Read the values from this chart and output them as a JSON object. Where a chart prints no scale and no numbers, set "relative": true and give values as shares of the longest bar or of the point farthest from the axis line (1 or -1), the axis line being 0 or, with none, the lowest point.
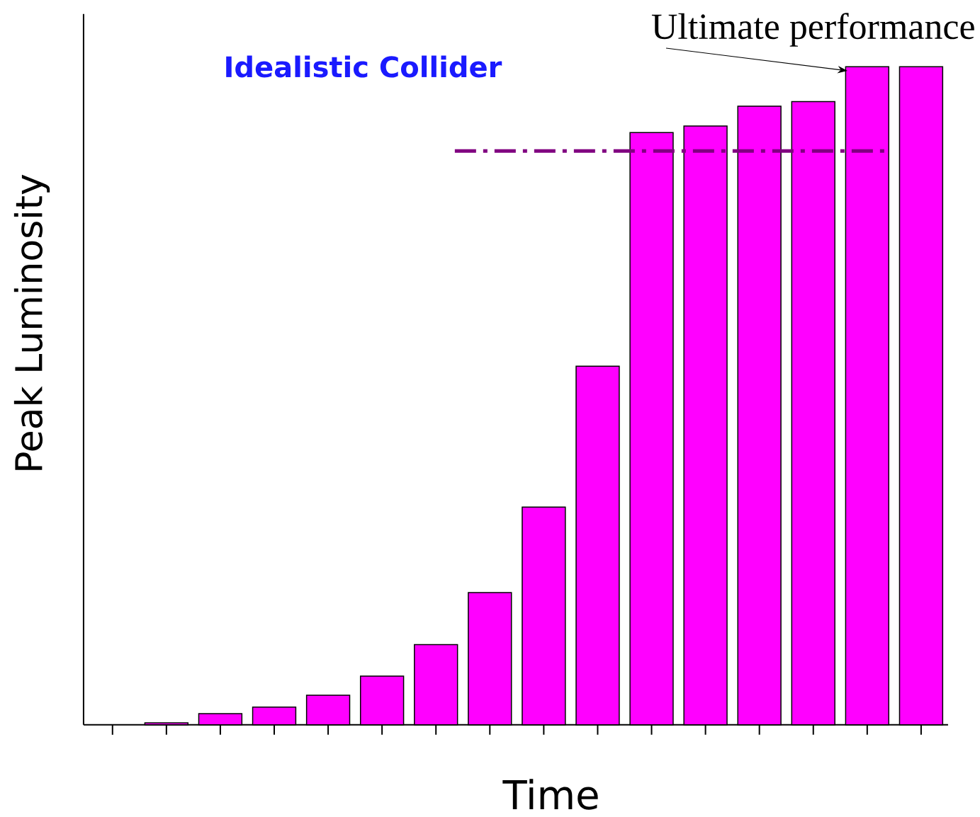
{
  "chart_data": {
    "type": "bar",
    "title": "Idealistic Collider",
    "xlabel": "Time",
    "ylabel": "Peak Luminosity",
    "relative": true,
    "categories": [
      null,
      null,
      null,
      null,
      null,
      null,
      null,
      null,
      null,
      null,
      null,
      null,
      null,
      null,
      null
    ],
    "values": [
      0.003,
      0.017,
      0.027,
      0.045,
      0.074,
      0.122,
      0.201,
      0.331,
      0.545,
      0.9,
      0.91,
      0.94,
      0.947,
      1,
      1
    ],
    "color": "#ff00ff",
    "ref_lines": [
      {
        "axis": "y",
        "value": 0.872,
        "color": "#800080",
        "line_style": "dashed"
      }
    ],
    "annotations": [
      "Ultimate performance"
    ]
  }
}
